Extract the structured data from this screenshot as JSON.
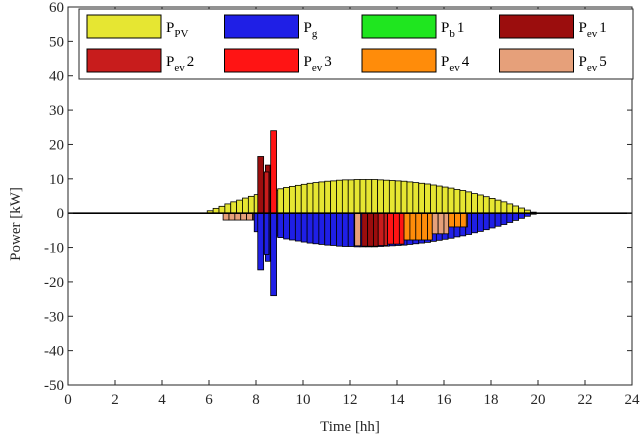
{
  "chart_data": {
    "type": "bar",
    "stacked": true,
    "xlabel": "Time [hh]",
    "ylabel": "Power [kW]",
    "xlim": [
      0,
      24
    ],
    "ylim": [
      -50,
      60
    ],
    "xticks": [
      0,
      2,
      4,
      6,
      8,
      10,
      12,
      14,
      16,
      18,
      20,
      22,
      24
    ],
    "yticks": [
      -50,
      -40,
      -30,
      -20,
      -10,
      0,
      10,
      20,
      30,
      40,
      50,
      60
    ],
    "grid": false,
    "legend_position": "top",
    "colors": {
      "P_PV": "#e6e632",
      "P_g": "#1f1fe6",
      "P_b1": "#1fe61f",
      "P_ev1": "#9b0d0d",
      "P_ev2": "#c81c1c",
      "P_ev3": "#ff1414",
      "P_ev4": "#ff8c0a",
      "P_ev5": "#e6a07a"
    },
    "legend": [
      {
        "key": "P_PV",
        "base": "P",
        "sub": "PV",
        "suffix": ""
      },
      {
        "key": "P_g",
        "base": "P",
        "sub": "g",
        "suffix": ""
      },
      {
        "key": "P_b1",
        "base": "P",
        "sub": "b",
        "suffix": "1"
      },
      {
        "key": "P_ev1",
        "base": "P",
        "sub": "ev",
        "suffix": "1"
      },
      {
        "key": "P_ev2",
        "base": "P",
        "sub": "ev",
        "suffix": "2"
      },
      {
        "key": "P_ev3",
        "base": "P",
        "sub": "ev",
        "suffix": "3"
      },
      {
        "key": "P_ev4",
        "base": "P",
        "sub": "ev",
        "suffix": "4"
      },
      {
        "key": "P_ev5",
        "base": "P",
        "sub": "ev",
        "suffix": "5"
      }
    ],
    "pv": {
      "start": 5.8,
      "end": 19.9,
      "peak_time": 12.6,
      "peak_kw": 9.8,
      "step_h": 0.25
    },
    "ev_bars": [
      {
        "series": "P_ev1",
        "t": 8.2,
        "value": 16.5,
        "width_h": 0.25
      },
      {
        "series": "P_ev1",
        "t": 8.5,
        "value": 14.0,
        "width_h": 0.2
      },
      {
        "series": "P_ev3",
        "t": 8.75,
        "value": 24.0,
        "width_h": 0.25
      },
      {
        "series": "P_ev2",
        "t": 8.45,
        "value": 12.0,
        "width_h": 0.2
      }
    ],
    "ev_discharge_bands": [
      {
        "series": "P_ev5",
        "from": 6.6,
        "to": 7.9,
        "value": -2.0
      },
      {
        "series": "P_ev5",
        "from": 12.2,
        "to": 12.45,
        "value": -9.5
      },
      {
        "series": "P_ev1",
        "from": 12.5,
        "to": 13.2,
        "value": -9.6
      },
      {
        "series": "P_ev2",
        "from": 13.2,
        "to": 13.6,
        "value": -9.4
      },
      {
        "series": "P_ev3",
        "from": 13.6,
        "to": 14.3,
        "value": -9.0
      },
      {
        "series": "P_ev4",
        "from": 14.3,
        "to": 15.5,
        "value": -7.8
      },
      {
        "series": "P_ev5",
        "from": 15.5,
        "to": 16.2,
        "value": -6.0
      },
      {
        "series": "P_ev4",
        "from": 16.2,
        "to": 17.0,
        "value": -4.0
      }
    ]
  }
}
